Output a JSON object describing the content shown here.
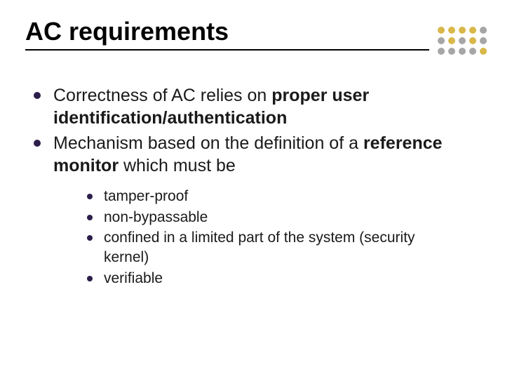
{
  "title": "AC requirements",
  "title_fontsize": 36,
  "title_color": "#000000",
  "rule_color": "#000000",
  "background_color": "#ffffff",
  "bullet_glyph_color": "#2c1d4a",
  "body_text_color": "#1a1a1a",
  "level1_fontsize": 25,
  "level2_fontsize": 21,
  "bullets": [
    {
      "plain_before": "Correctness of AC relies on ",
      "bold": "proper user identification/authentication",
      "plain_after": ""
    },
    {
      "plain_before": "Mechanism based on the definition of a ",
      "bold": "reference monitor",
      "plain_after": " which must be",
      "children": [
        "tamper-proof",
        "non-bypassable",
        "confined in a limited part of the system (security kernel)",
        "verifiable"
      ]
    }
  ],
  "decorative_dots": {
    "rows": 3,
    "cols": 5,
    "dot_size": 10,
    "gap": 3,
    "colors": [
      [
        "#d9b84a",
        "#d9b84a",
        "#d9b84a",
        "#d9b84a",
        "#a6a6a6"
      ],
      [
        "#a6a6a6",
        "#d9b84a",
        "#a6a6a6",
        "#d9b84a",
        "#a6a6a6"
      ],
      [
        "#a6a6a6",
        "#a6a6a6",
        "#a6a6a6",
        "#a6a6a6",
        "#d9b84a"
      ]
    ]
  }
}
